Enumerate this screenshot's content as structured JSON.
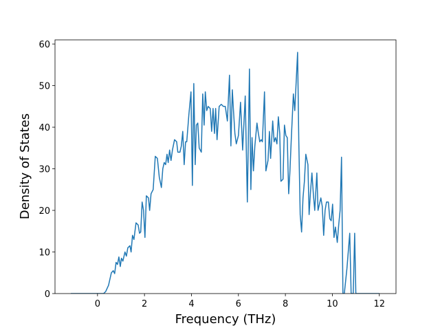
{
  "chart_data": {
    "type": "line",
    "xlabel": "Frequency (THz)",
    "ylabel": "Density of States",
    "xlim": [
      -1.81,
      12.71
    ],
    "ylim": [
      0,
      61
    ],
    "xticks": [
      0,
      2,
      4,
      6,
      8,
      10,
      12
    ],
    "yticks": [
      0,
      10,
      20,
      30,
      40,
      50,
      60
    ],
    "x": [
      -1.14,
      0.26,
      0.35,
      0.47,
      0.59,
      0.67,
      0.73,
      0.79,
      0.85,
      0.91,
      0.97,
      1.02,
      1.08,
      1.17,
      1.23,
      1.29,
      1.38,
      1.43,
      1.49,
      1.55,
      1.64,
      1.73,
      1.79,
      1.84,
      1.9,
      1.96,
      2.02,
      2.08,
      2.17,
      2.22,
      2.28,
      2.37,
      2.46,
      2.55,
      2.63,
      2.72,
      2.78,
      2.84,
      2.9,
      2.96,
      3.01,
      3.07,
      3.13,
      3.19,
      3.28,
      3.37,
      3.42,
      3.51,
      3.57,
      3.63,
      3.69,
      3.75,
      3.8,
      3.89,
      3.98,
      4.04,
      4.1,
      4.16,
      4.21,
      4.27,
      4.33,
      4.42,
      4.48,
      4.54,
      4.59,
      4.65,
      4.71,
      4.8,
      4.86,
      4.92,
      4.98,
      5.03,
      5.09,
      5.18,
      5.27,
      5.36,
      5.44,
      5.53,
      5.62,
      5.68,
      5.74,
      5.79,
      5.85,
      5.91,
      6.0,
      6.09,
      6.18,
      6.29,
      6.38,
      6.47,
      6.53,
      6.58,
      6.64,
      6.7,
      6.79,
      6.85,
      6.91,
      6.97,
      7.02,
      7.11,
      7.17,
      7.26,
      7.32,
      7.37,
      7.46,
      7.52,
      7.58,
      7.64,
      7.7,
      7.76,
      7.81,
      7.9,
      7.96,
      8.02,
      8.08,
      8.14,
      8.19,
      8.25,
      8.34,
      8.4,
      8.52,
      8.57,
      8.63,
      8.69,
      8.75,
      8.81,
      8.87,
      8.96,
      9.01,
      9.07,
      9.13,
      9.19,
      9.25,
      9.34,
      9.39,
      9.45,
      9.51,
      9.57,
      9.63,
      9.69,
      9.75,
      9.83,
      9.89,
      9.95,
      10.01,
      10.07,
      10.13,
      10.21,
      10.27,
      10.33,
      10.39,
      10.45,
      10.51,
      10.62,
      10.74,
      10.8,
      10.89,
      10.95,
      11.0,
      12.0
    ],
    "series": [
      {
        "color": "#1f77b4",
        "values": [
          0,
          0,
          0.5,
          2,
          5,
          5.5,
          4.8,
          7.5,
          7,
          8.8,
          6.5,
          8.5,
          7.8,
          10,
          9,
          11,
          11.5,
          10,
          14,
          13,
          17,
          16.5,
          14.5,
          14.8,
          22,
          20,
          13.5,
          23.5,
          23,
          20,
          24,
          25,
          33,
          32.5,
          28,
          25.5,
          30,
          31.5,
          31,
          33.5,
          31.5,
          34.5,
          32,
          34.5,
          37,
          36.5,
          34,
          34,
          35.5,
          39,
          31,
          36.5,
          36.5,
          43,
          48.5,
          26,
          50.5,
          31,
          40.5,
          41,
          35,
          34,
          48,
          40.5,
          48.5,
          44,
          45,
          44.5,
          39,
          44.5,
          38.5,
          44.5,
          37,
          45,
          45.5,
          45,
          45,
          41.5,
          52.5,
          35.5,
          49,
          44,
          38.5,
          36,
          38,
          46,
          34.5,
          47.5,
          22,
          54,
          25,
          37.5,
          29.5,
          35.5,
          41,
          38.5,
          36.5,
          37,
          36.5,
          48.5,
          29.5,
          32,
          39,
          32.5,
          41.5,
          36.5,
          37.5,
          36,
          42.5,
          38.5,
          27,
          27.5,
          40.5,
          38,
          37.5,
          24,
          29,
          37,
          48,
          44,
          58,
          37,
          19,
          14.8,
          23,
          27,
          33.5,
          31,
          19,
          24.5,
          29,
          24,
          20,
          29,
          20,
          21.5,
          23,
          21,
          14,
          20,
          22,
          22,
          18,
          17.5,
          21.5,
          13.5,
          16,
          12.3,
          16.5,
          20,
          32.8,
          0,
          0,
          6,
          14.5,
          0,
          0,
          14.5,
          0,
          0
        ]
      }
    ]
  }
}
